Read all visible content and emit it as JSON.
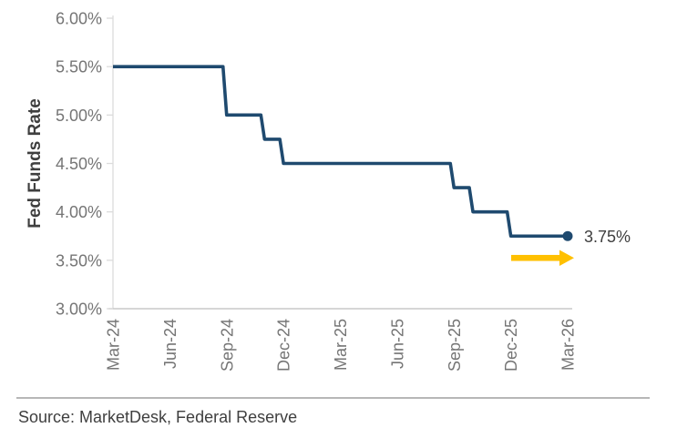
{
  "chart_data": {
    "type": "line",
    "title": "",
    "xlabel": "",
    "ylabel": "Fed Funds Rate",
    "months": [
      "Mar-24",
      "Apr-24",
      "May-24",
      "Jun-24",
      "Jul-24",
      "Aug-24",
      "Sep-24",
      "Oct-24",
      "Nov-24",
      "Dec-24",
      "Jan-25",
      "Feb-25",
      "Mar-25",
      "Apr-25",
      "May-25",
      "Jun-25",
      "Jul-25",
      "Aug-25",
      "Sep-25",
      "Oct-25",
      "Nov-25",
      "Dec-25",
      "Jan-26",
      "Feb-26",
      "Mar-26"
    ],
    "series": [
      {
        "name": "Fed Funds Rate",
        "values": [
          5.5,
          5.5,
          5.5,
          5.5,
          5.5,
          5.5,
          5.0,
          5.0,
          4.75,
          4.5,
          4.5,
          4.5,
          4.5,
          4.5,
          4.5,
          4.5,
          4.5,
          4.5,
          4.25,
          4.0,
          4.0,
          3.75,
          3.75,
          3.75,
          3.75
        ]
      }
    ],
    "x_ticks": [
      {
        "label": "Mar-24",
        "month_index": 0
      },
      {
        "label": "Jun-24",
        "month_index": 3
      },
      {
        "label": "Sep-24",
        "month_index": 6
      },
      {
        "label": "Dec-24",
        "month_index": 9
      },
      {
        "label": "Mar-25",
        "month_index": 12
      },
      {
        "label": "Jun-25",
        "month_index": 15
      },
      {
        "label": "Sep-25",
        "month_index": 18
      },
      {
        "label": "Dec-25",
        "month_index": 21
      },
      {
        "label": "Mar-26",
        "month_index": 24
      }
    ],
    "y_ticks": [
      {
        "label": "6.00%",
        "value": 6.0
      },
      {
        "label": "5.50%",
        "value": 5.5
      },
      {
        "label": "5.00%",
        "value": 5.0
      },
      {
        "label": "4.50%",
        "value": 4.5
      },
      {
        "label": "4.00%",
        "value": 4.0
      },
      {
        "label": "3.50%",
        "value": 3.5
      },
      {
        "label": "3.00%",
        "value": 3.0
      }
    ],
    "ylim": [
      3.0,
      6.0
    ],
    "grid": false,
    "legend": "none",
    "end_label": "3.75%",
    "end_marker": "dot",
    "projection_arrow": true
  },
  "icons": {
    "projection_arrow": "right-arrow-icon"
  },
  "colors": {
    "line": "#1F4A6F",
    "dot": "#1F4A6F",
    "arrow": "#FFC000",
    "tick_text": "#757575",
    "dark_text": "#3F3F3F",
    "axis_y": "#DCDCDC",
    "axis_x": "#C9C9C9",
    "divider": "#B7B7B7",
    "background": "#FFFFFF"
  },
  "footer": {
    "source": "Source: MarketDesk, Federal Reserve"
  }
}
